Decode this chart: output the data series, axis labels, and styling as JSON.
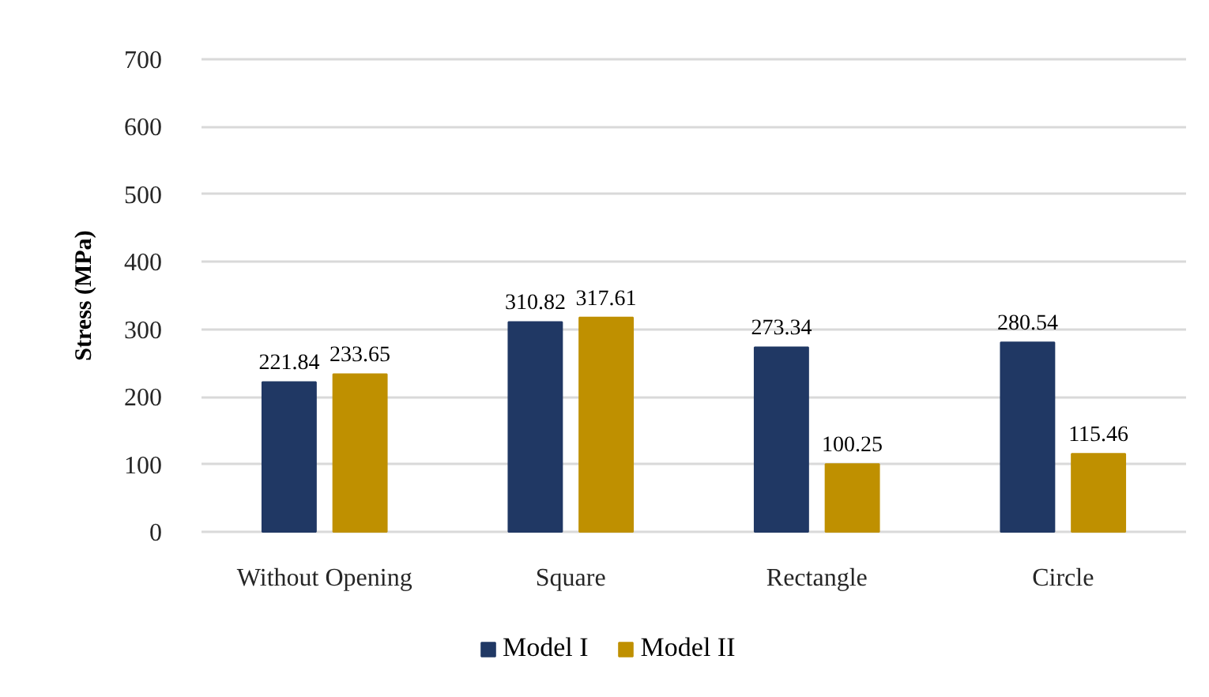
{
  "chart_data": {
    "type": "bar",
    "categories": [
      "Without Opening",
      "Square",
      "Rectangle",
      "Circle"
    ],
    "series": [
      {
        "name": "Model I",
        "color": "#203864",
        "values": [
          221.84,
          310.82,
          273.34,
          280.54
        ]
      },
      {
        "name": "Model II",
        "color": "#bf9000",
        "values": [
          233.65,
          317.61,
          100.25,
          115.46
        ]
      }
    ],
    "ylabel": "Stress (MPa)",
    "ylim": [
      0,
      700
    ],
    "yticks": [
      0,
      100,
      200,
      300,
      400,
      500,
      600,
      700
    ],
    "grid": "y",
    "legend": "bottom",
    "data_labels": true
  }
}
